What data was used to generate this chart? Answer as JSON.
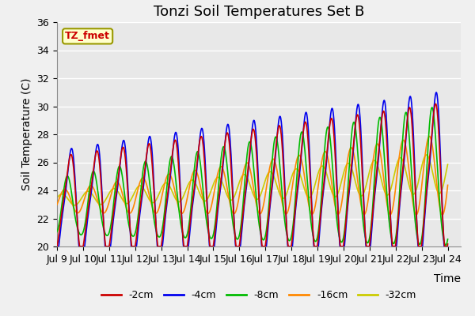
{
  "title": "Tonzi Soil Temperatures Set B",
  "xlabel": "Time",
  "ylabel": "Soil Temperature (C)",
  "xlim": [
    0,
    15.5
  ],
  "ylim": [
    20,
    36
  ],
  "yticks": [
    20,
    22,
    24,
    26,
    28,
    30,
    32,
    34,
    36
  ],
  "xtick_labels": [
    "Jul 9",
    "Jul 10",
    "Jul 11",
    "Jul 12",
    "Jul 13",
    "Jul 14",
    "Jul 15",
    "Jul 16",
    "Jul 17",
    "Jul 18",
    "Jul 19",
    "Jul 20",
    "Jul 21",
    "Jul 22",
    "Jul 23",
    "Jul 24"
  ],
  "legend_labels": [
    "-2cm",
    "-4cm",
    "-8cm",
    "-16cm",
    "-32cm"
  ],
  "line_colors": [
    "#cc0000",
    "#0000ee",
    "#00bb00",
    "#ff8800",
    "#cccc00"
  ],
  "annotation_text": "TZ_fmet",
  "annotation_color": "#cc0000",
  "annotation_bg": "#ffffcc",
  "annotation_border": "#999900",
  "background_color": "#e8e8e8",
  "grid_color": "#ffffff",
  "title_fontsize": 13,
  "axis_fontsize": 10,
  "tick_fontsize": 9
}
